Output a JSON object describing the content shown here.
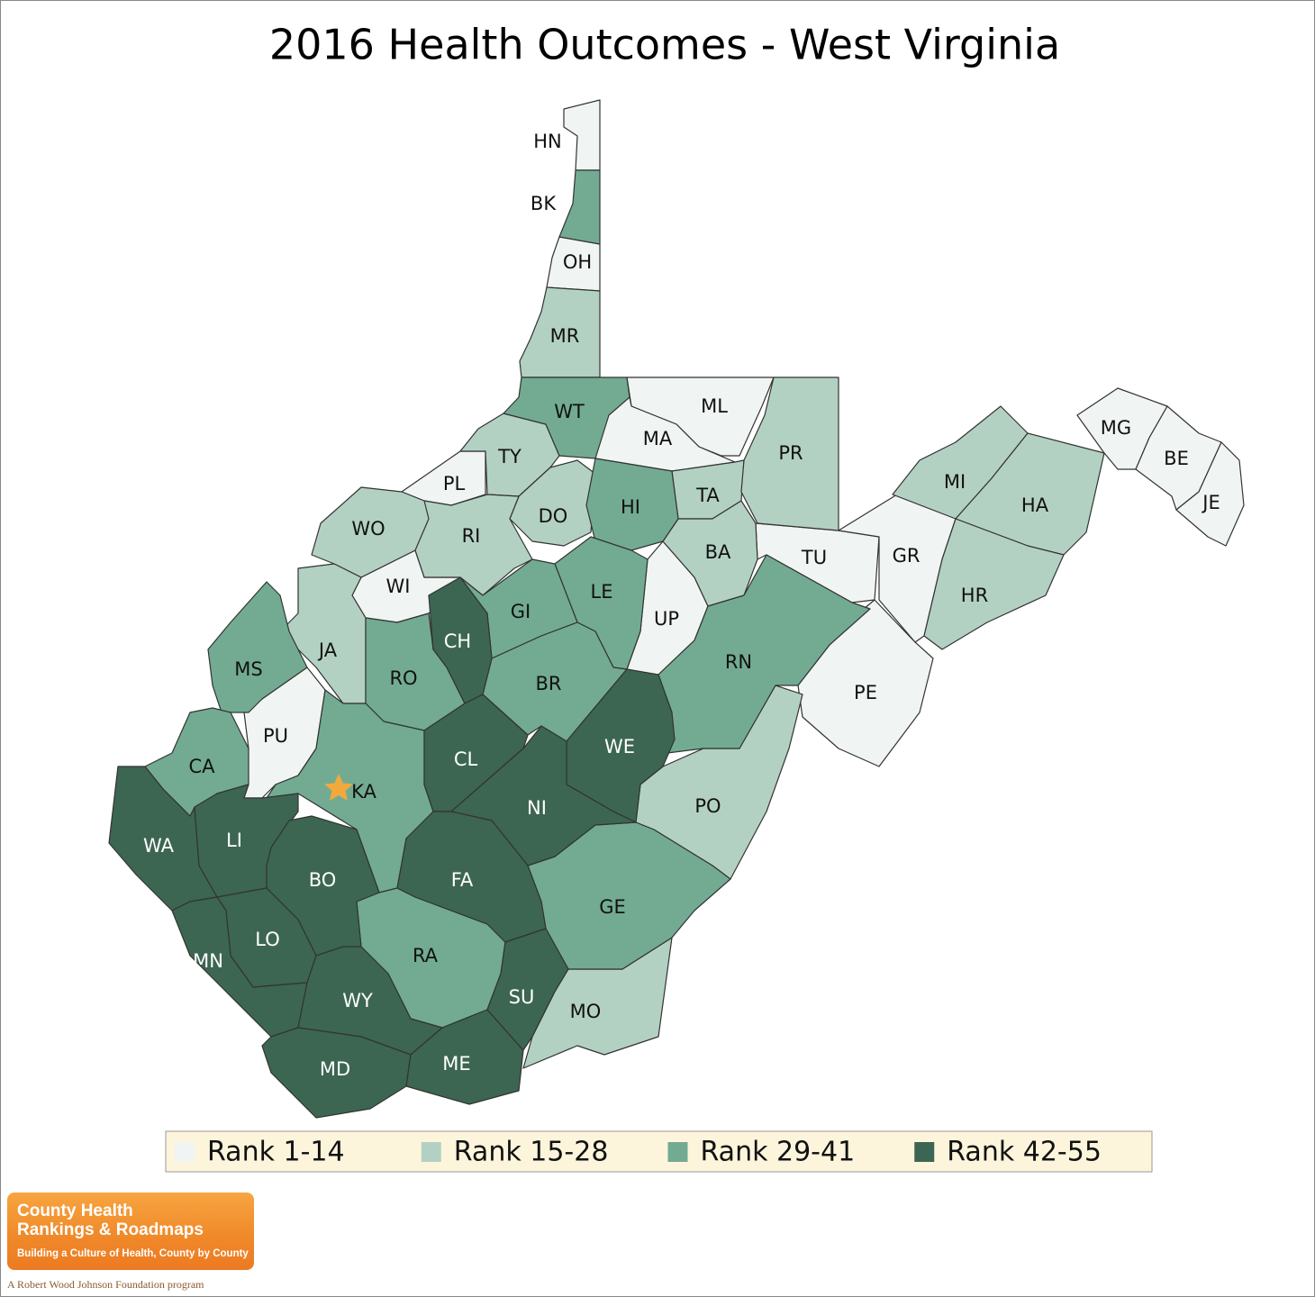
{
  "title": "2016 Health Outcomes - West Virginia",
  "legend": [
    {
      "label": "Rank 1-14",
      "color": "#f0f4f2",
      "counties": [
        "HN",
        "OH",
        "ML",
        "MA",
        "PL",
        "WI",
        "UP",
        "TU",
        "GR",
        "PE",
        "MG",
        "BE",
        "JE",
        "PU"
      ]
    },
    {
      "label": "Rank 15-28",
      "color": "#b3d1c2",
      "counties": [
        "MR",
        "TY",
        "DO",
        "RI",
        "WO",
        "JA",
        "TA",
        "BA",
        "PR",
        "MI",
        "HA",
        "HR",
        "PO",
        "MO"
      ]
    },
    {
      "label": "Rank 29-41",
      "color": "#72ab92",
      "counties": [
        "BK",
        "WT",
        "HI",
        "LE",
        "GI",
        "BR",
        "RO",
        "MS",
        "CA",
        "KA",
        "RN",
        "GE",
        "RA"
      ]
    },
    {
      "label": "Rank 42-55",
      "color": "#3c6652",
      "counties": [
        "CH",
        "CL",
        "WE",
        "NI",
        "FA",
        "WA",
        "LI",
        "BO",
        "LO",
        "MN",
        "WY",
        "MD",
        "ME",
        "SU"
      ]
    }
  ],
  "logo": {
    "name_line1": "County Health",
    "name_line2": "Rankings & Roadmaps",
    "tagline": "Building a Culture of Health, County by County",
    "sponsor": "A Robert Wood Johnson Foundation program"
  }
}
